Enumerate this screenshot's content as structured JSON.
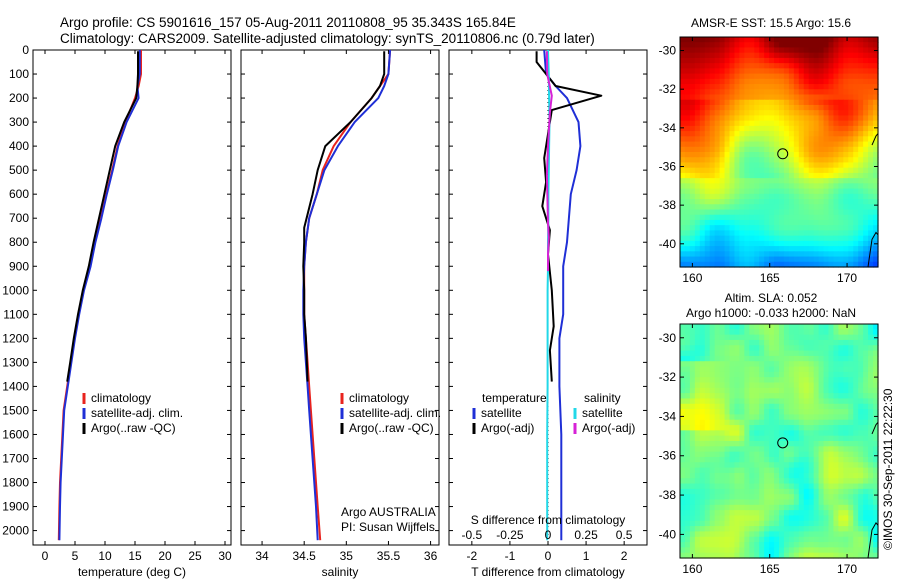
{
  "header": {
    "line1": "Argo profile: CS 5901616_157 05-Aug-2011 20110808_95 35.343S 165.84E",
    "line2": "Climatology: CARS2009. Satellite-adjusted climatology: synTS_20110806.nc (0.79d later)"
  },
  "colors": {
    "climatology": "#e8231e",
    "satellite": "#1f2fd6",
    "argo": "#000000",
    "satellite_salinity": "#22d8e8",
    "argo_adj_salinity": "#d622d6"
  },
  "depth_ticks": [
    "0",
    "100",
    "200",
    "300",
    "400",
    "500",
    "600",
    "700",
    "800",
    "900",
    "1000",
    "1100",
    "1200",
    "1300",
    "1400",
    "1500",
    "1600",
    "1700",
    "1800",
    "1900",
    "2000"
  ],
  "panels": {
    "temperature": {
      "xlabel": "temperature (deg C)",
      "xticks": [
        "0",
        "5",
        "10",
        "15",
        "20",
        "25",
        "30"
      ],
      "legend": [
        "climatology",
        "satellite-adj. clim.",
        "Argo(..raw -QC)"
      ]
    },
    "salinity": {
      "xlabel": "salinity",
      "xticks": [
        "34",
        "34.5",
        "35",
        "35.5",
        "36"
      ],
      "legend": [
        "climatology",
        "satellite-adj. clim.",
        "Argo(..raw -QC)"
      ],
      "note1": "Argo AUSTRALIA",
      "note2": "PI: Susan Wijffels"
    },
    "difference": {
      "xlabel": "T difference from climatology",
      "xlabel_top": "S difference from climatology",
      "xticks": [
        "-2",
        "-1",
        "0",
        "1",
        "2"
      ],
      "xticks_top": [
        "-0.5",
        "-0.25",
        "0",
        "0.25",
        "0.5"
      ],
      "legend_temp_title": "temperature",
      "legend_sal_title": "salinity",
      "legend_temp": [
        "satellite",
        "Argo(-adj)"
      ],
      "legend_sal": [
        "satellite",
        "Argo(-adj)"
      ]
    }
  },
  "maps": {
    "sst": {
      "title": "AMSR-E SST: 15.5 Argo: 15.6",
      "xticks": [
        "160",
        "165",
        "170"
      ],
      "yticks": [
        "-30",
        "-32",
        "-34",
        "-36",
        "-38",
        "-40"
      ]
    },
    "sla": {
      "title1": "Altim. SLA: 0.052",
      "title2": "Argo h1000: -0.033 h2000: NaN",
      "xticks": [
        "160",
        "165",
        "170"
      ],
      "yticks": [
        "-30",
        "-32",
        "-34",
        "-36",
        "-38",
        "-40"
      ]
    },
    "float_marker": {
      "lon": 165.84,
      "lat": -35.343
    }
  },
  "credit": "©IMOS 30-Sep-2011 22:22:30",
  "chart_data": [
    {
      "type": "line",
      "title": "",
      "xlabel": "temperature (deg C)",
      "ylabel": "",
      "xlim": [
        -2,
        31
      ],
      "ylim": [
        2060,
        0
      ],
      "series": [
        {
          "name": "climatology",
          "x": [
            16,
            16,
            15.6,
            15,
            13.4,
            12.1,
            11.2,
            10.2,
            9.3,
            8.3,
            7.5,
            6.4,
            5.6,
            4.9,
            4.3,
            3.7,
            3.1,
            2.9,
            2.7,
            2.5,
            2.4,
            2.3
          ],
          "y": [
            0,
            100,
            150,
            200,
            300,
            400,
            500,
            600,
            700,
            800,
            900,
            1000,
            1100,
            1200,
            1300,
            1400,
            1500,
            1600,
            1700,
            1800,
            1900,
            2040
          ]
        },
        {
          "name": "satellite-adj. clim.",
          "x": [
            15.8,
            15.8,
            15.4,
            15.6,
            13.6,
            12.2,
            11.3,
            10.3,
            9.4,
            8.4,
            7.6,
            6.5,
            5.7,
            5,
            4.4,
            3.8,
            3.2,
            3,
            2.8,
            2.6,
            2.5,
            2.4
          ],
          "y": [
            0,
            100,
            150,
            200,
            300,
            400,
            500,
            600,
            700,
            800,
            900,
            1000,
            1100,
            1200,
            1300,
            1400,
            1500,
            1600,
            1700,
            1800,
            1900,
            2040
          ]
        },
        {
          "name": "Argo(..raw -QC)",
          "x": [
            15.5,
            15.5,
            15.4,
            15.2,
            13.2,
            11.7,
            10.8,
            9.9,
            9,
            8.1,
            7.3,
            6.3,
            5.5,
            4.8,
            4.2,
            3.7
          ],
          "y": [
            5,
            100,
            150,
            200,
            300,
            400,
            500,
            600,
            700,
            800,
            900,
            1000,
            1100,
            1200,
            1300,
            1380
          ]
        }
      ]
    },
    {
      "type": "line",
      "title": "",
      "xlabel": "salinity",
      "ylabel": "",
      "xlim": [
        33.75,
        36.1
      ],
      "ylim": [
        2060,
        0
      ],
      "series": [
        {
          "name": "climatology",
          "x": [
            35.52,
            35.5,
            35.4,
            35.3,
            35.05,
            34.85,
            34.72,
            34.65,
            34.56,
            34.52,
            34.5,
            34.5,
            34.5,
            34.52,
            34.54,
            34.56,
            34.58,
            34.6,
            34.62,
            34.64,
            34.66,
            34.69
          ],
          "y": [
            0,
            100,
            150,
            200,
            300,
            400,
            500,
            600,
            700,
            800,
            900,
            1000,
            1100,
            1200,
            1300,
            1400,
            1500,
            1600,
            1700,
            1800,
            1900,
            2040
          ]
        },
        {
          "name": "satellite-adj. clim.",
          "x": [
            35.52,
            35.5,
            35.45,
            35.38,
            35.1,
            34.9,
            34.74,
            34.65,
            34.56,
            34.52,
            34.5,
            34.49,
            34.49,
            34.5,
            34.52,
            34.54,
            34.56,
            34.58,
            34.6,
            34.62,
            34.64,
            34.66
          ],
          "y": [
            0,
            100,
            150,
            200,
            300,
            400,
            500,
            600,
            700,
            800,
            900,
            1000,
            1100,
            1200,
            1300,
            1400,
            1500,
            1600,
            1700,
            1800,
            1900,
            2040
          ]
        },
        {
          "name": "Argo(..raw -QC)",
          "x": [
            35.45,
            35.45,
            35.4,
            35.3,
            35.05,
            34.75,
            34.66,
            34.6,
            34.5,
            34.5,
            34.49,
            34.5,
            34.5,
            34.52,
            34.54
          ],
          "y": [
            5,
            100,
            150,
            200,
            300,
            400,
            500,
            600,
            740,
            800,
            900,
            1000,
            1100,
            1200,
            1380
          ]
        }
      ]
    },
    {
      "type": "line",
      "title": "",
      "xlabel": "T difference from climatology",
      "ylabel": "",
      "xlim": [
        -2.6,
        2.6
      ],
      "ylim": [
        2060,
        0
      ],
      "series": [
        {
          "name": "satellite",
          "x": [
            -0.1,
            -0.05,
            0.2,
            0.5,
            0.8,
            0.85,
            0.75,
            0.6,
            0.55,
            0.5,
            0.4,
            0.4,
            0.4,
            0.3,
            0.3,
            0.35,
            0.35,
            0.35,
            0.35
          ],
          "y": [
            0,
            100,
            150,
            200,
            300,
            400,
            500,
            600,
            700,
            800,
            900,
            1000,
            1100,
            1200,
            1400,
            1600,
            1800,
            1950,
            2040
          ]
        },
        {
          "name": "Argo(-adj)",
          "x": [
            -0.3,
            -0.3,
            0.2,
            1.4,
            0.1,
            0,
            -0.1,
            -0.05,
            -0.15,
            0.05,
            0,
            0.1,
            0.15,
            0.05,
            0.1
          ],
          "y": [
            5,
            50,
            150,
            190,
            250,
            350,
            450,
            550,
            650,
            750,
            850,
            1000,
            1150,
            1250,
            1380
          ]
        },
        {
          "name": "satellite (salinity)",
          "x": [
            0,
            0.02,
            0.03,
            0.04,
            0.03,
            0.02,
            0.01,
            0.01,
            0,
            0,
            -0.01,
            -0.01,
            -0.01,
            -0.02,
            -0.02,
            -0.02,
            -0.02
          ],
          "y": [
            0,
            100,
            200,
            300,
            400,
            500,
            600,
            700,
            800,
            900,
            1000,
            1200,
            1400,
            1600,
            1800,
            1950,
            2040
          ]
        },
        {
          "name": "Argo(-adj) (salinity)",
          "x": [
            -0.03,
            -0.02,
            0.1,
            0.05,
            0,
            -0.03,
            -0.01,
            0,
            0.02,
            0,
            0
          ],
          "y": [
            5,
            100,
            190,
            260,
            400,
            520,
            650,
            720,
            780,
            850,
            920
          ]
        }
      ]
    }
  ]
}
